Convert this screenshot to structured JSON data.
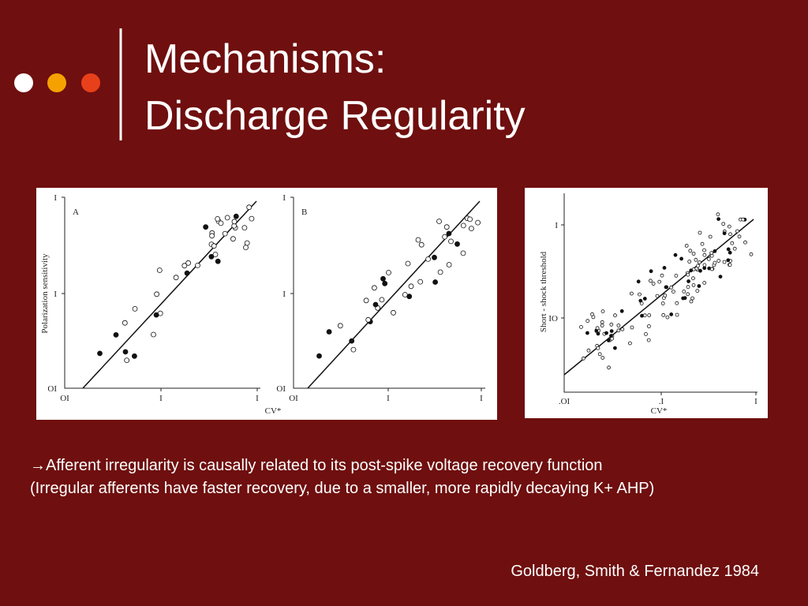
{
  "title": {
    "line1": "Mechanisms:",
    "line2": "Discharge Regularity"
  },
  "figure1": {
    "y_label": "Polarization sensitivity",
    "x_label": "CV*",
    "panel_a": {
      "label": "A",
      "y_ticks": [
        "I",
        "I",
        "OI"
      ],
      "x_ticks": [
        "OI",
        "I",
        "I"
      ]
    },
    "panel_b": {
      "label": "B",
      "y_ticks": [
        "I",
        "I",
        "OI"
      ],
      "x_ticks": [
        "OI",
        "I",
        "I"
      ]
    }
  },
  "figure2": {
    "y_label": "Short - shock threshold",
    "x_label": "CV*",
    "y_ticks": [
      "I",
      "IO"
    ],
    "x_ticks": [
      ".OI",
      ".I",
      "I"
    ]
  },
  "text": {
    "line1": "→Afferent irregularity is causally related to its post-spike voltage recovery function",
    "line2": "(Irregular afferents have faster recovery, due to a smaller, more rapidly decaying K+ AHP)"
  },
  "citation": "Goldberg, Smith & Fernandez 1984"
}
